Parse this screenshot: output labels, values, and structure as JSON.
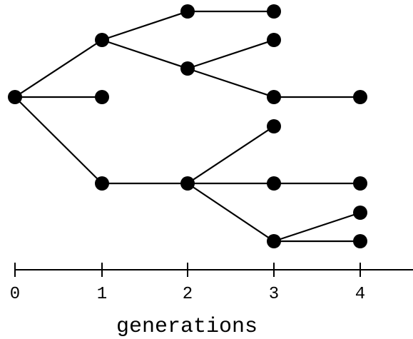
{
  "axis": {
    "label": "generations",
    "ticks": [
      "0",
      "1",
      "2",
      "3",
      "4"
    ]
  },
  "tree": {
    "nodes": [
      {
        "id": "n0",
        "generation": 0
      },
      {
        "id": "n1a",
        "generation": 1
      },
      {
        "id": "n1b",
        "generation": 1
      },
      {
        "id": "n1c",
        "generation": 1
      },
      {
        "id": "n2a",
        "generation": 2
      },
      {
        "id": "n2b",
        "generation": 2
      },
      {
        "id": "n2c",
        "generation": 2
      },
      {
        "id": "n3a",
        "generation": 3
      },
      {
        "id": "n3b",
        "generation": 3
      },
      {
        "id": "n3c",
        "generation": 3
      },
      {
        "id": "n3d",
        "generation": 3
      },
      {
        "id": "n3e",
        "generation": 3
      },
      {
        "id": "n3f",
        "generation": 3
      },
      {
        "id": "n4a",
        "generation": 4
      },
      {
        "id": "n4b",
        "generation": 4
      },
      {
        "id": "n4c",
        "generation": 4
      },
      {
        "id": "n4d",
        "generation": 4
      }
    ],
    "edges": [
      [
        "n0",
        "n1a"
      ],
      [
        "n0",
        "n1b"
      ],
      [
        "n0",
        "n1c"
      ],
      [
        "n1a",
        "n2a"
      ],
      [
        "n1a",
        "n2b"
      ],
      [
        "n2a",
        "n3a"
      ],
      [
        "n2b",
        "n3b"
      ],
      [
        "n2b",
        "n3c"
      ],
      [
        "n3c",
        "n4a"
      ],
      [
        "n1c",
        "n2c"
      ],
      [
        "n2c",
        "n3d"
      ],
      [
        "n2c",
        "n3e"
      ],
      [
        "n2c",
        "n3f"
      ],
      [
        "n3e",
        "n4b"
      ],
      [
        "n3f",
        "n4c"
      ],
      [
        "n3f",
        "n4d"
      ]
    ]
  },
  "colors": {
    "ink": "#000000",
    "background": "#ffffff"
  }
}
